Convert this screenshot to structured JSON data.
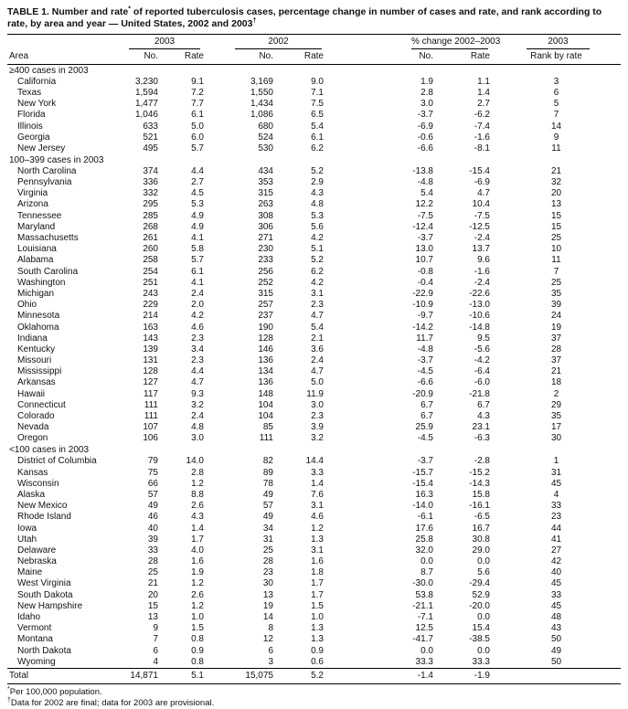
{
  "title": {
    "part1": "TABLE 1. Number and rate",
    "sup1": "*",
    "part2": " of reported tuberculosis cases, percentage change in number of cases and rate, and rank according to rate, by area and year — United States, 2002 and 2003",
    "sup2": "†"
  },
  "header": {
    "area_label": "Area",
    "groups": [
      "2003",
      "2002",
      "% change 2002–2003",
      "2003"
    ],
    "sub_labels": [
      "No.",
      "Rate",
      "No.",
      "Rate",
      "No.",
      "Rate",
      "Rank by rate"
    ]
  },
  "sections": [
    {
      "label": "≥400 cases in 2003",
      "rows": [
        {
          "area": "California",
          "values": [
            "3,230",
            "9.1",
            "3,169",
            "9.0",
            "1.9",
            "1.1",
            "3"
          ]
        },
        {
          "area": "Texas",
          "values": [
            "1,594",
            "7.2",
            "1,550",
            "7.1",
            "2.8",
            "1.4",
            "6"
          ]
        },
        {
          "area": "New York",
          "values": [
            "1,477",
            "7.7",
            "1,434",
            "7.5",
            "3.0",
            "2.7",
            "5"
          ]
        },
        {
          "area": "Florida",
          "values": [
            "1,046",
            "6.1",
            "1,086",
            "6.5",
            "-3.7",
            "-6.2",
            "7"
          ]
        },
        {
          "area": "Illinois",
          "values": [
            "633",
            "5.0",
            "680",
            "5.4",
            "-6.9",
            "-7.4",
            "14"
          ]
        },
        {
          "area": "Georgia",
          "values": [
            "521",
            "6.0",
            "524",
            "6.1",
            "-0.6",
            "-1.6",
            "9"
          ]
        },
        {
          "area": "New Jersey",
          "values": [
            "495",
            "5.7",
            "530",
            "6.2",
            "-6.6",
            "-8.1",
            "11"
          ]
        }
      ]
    },
    {
      "label": "100–399 cases in 2003",
      "rows": [
        {
          "area": "North Carolina",
          "values": [
            "374",
            "4.4",
            "434",
            "5.2",
            "-13.8",
            "-15.4",
            "21"
          ]
        },
        {
          "area": "Pennsylvania",
          "values": [
            "336",
            "2.7",
            "353",
            "2.9",
            "-4.8",
            "-6.9",
            "32"
          ]
        },
        {
          "area": "Virginia",
          "values": [
            "332",
            "4.5",
            "315",
            "4.3",
            "5.4",
            "4.7",
            "20"
          ]
        },
        {
          "area": "Arizona",
          "values": [
            "295",
            "5.3",
            "263",
            "4.8",
            "12.2",
            "10.4",
            "13"
          ]
        },
        {
          "area": "Tennessee",
          "values": [
            "285",
            "4.9",
            "308",
            "5.3",
            "-7.5",
            "-7.5",
            "15"
          ]
        },
        {
          "area": "Maryland",
          "values": [
            "268",
            "4.9",
            "306",
            "5.6",
            "-12.4",
            "-12.5",
            "15"
          ]
        },
        {
          "area": "Massachusetts",
          "values": [
            "261",
            "4.1",
            "271",
            "4.2",
            "-3.7",
            "-2.4",
            "25"
          ]
        },
        {
          "area": "Louisiana",
          "values": [
            "260",
            "5.8",
            "230",
            "5.1",
            "13.0",
            "13.7",
            "10"
          ]
        },
        {
          "area": "Alabama",
          "values": [
            "258",
            "5.7",
            "233",
            "5.2",
            "10.7",
            "9.6",
            "11"
          ]
        },
        {
          "area": "South Carolina",
          "values": [
            "254",
            "6.1",
            "256",
            "6.2",
            "-0.8",
            "-1.6",
            "7"
          ]
        },
        {
          "area": "Washington",
          "values": [
            "251",
            "4.1",
            "252",
            "4.2",
            "-0.4",
            "-2.4",
            "25"
          ]
        },
        {
          "area": "Michigan",
          "values": [
            "243",
            "2.4",
            "315",
            "3.1",
            "-22.9",
            "-22.6",
            "35"
          ]
        },
        {
          "area": "Ohio",
          "values": [
            "229",
            "2.0",
            "257",
            "2.3",
            "-10.9",
            "-13.0",
            "39"
          ]
        },
        {
          "area": "Minnesota",
          "values": [
            "214",
            "4.2",
            "237",
            "4.7",
            "-9.7",
            "-10.6",
            "24"
          ]
        },
        {
          "area": "Oklahoma",
          "values": [
            "163",
            "4.6",
            "190",
            "5.4",
            "-14.2",
            "-14.8",
            "19"
          ]
        },
        {
          "area": "Indiana",
          "values": [
            "143",
            "2.3",
            "128",
            "2.1",
            "11.7",
            "9.5",
            "37"
          ]
        },
        {
          "area": "Kentucky",
          "values": [
            "139",
            "3.4",
            "146",
            "3.6",
            "-4.8",
            "-5.6",
            "28"
          ]
        },
        {
          "area": "Missouri",
          "values": [
            "131",
            "2.3",
            "136",
            "2.4",
            "-3.7",
            "-4.2",
            "37"
          ]
        },
        {
          "area": "Mississippi",
          "values": [
            "128",
            "4.4",
            "134",
            "4.7",
            "-4.5",
            "-6.4",
            "21"
          ]
        },
        {
          "area": "Arkansas",
          "values": [
            "127",
            "4.7",
            "136",
            "5.0",
            "-6.6",
            "-6.0",
            "18"
          ]
        },
        {
          "area": "Hawaii",
          "values": [
            "117",
            "9.3",
            "148",
            "11.9",
            "-20.9",
            "-21.8",
            "2"
          ]
        },
        {
          "area": "Connecticut",
          "values": [
            "111",
            "3.2",
            "104",
            "3.0",
            "6.7",
            "6.7",
            "29"
          ]
        },
        {
          "area": "Colorado",
          "values": [
            "111",
            "2.4",
            "104",
            "2.3",
            "6.7",
            "4.3",
            "35"
          ]
        },
        {
          "area": "Nevada",
          "values": [
            "107",
            "4.8",
            "85",
            "3.9",
            "25.9",
            "23.1",
            "17"
          ]
        },
        {
          "area": "Oregon",
          "values": [
            "106",
            "3.0",
            "111",
            "3.2",
            "-4.5",
            "-6.3",
            "30"
          ]
        }
      ]
    },
    {
      "label": "<100 cases in 2003",
      "rows": [
        {
          "area": "District of Columbia",
          "values": [
            "79",
            "14.0",
            "82",
            "14.4",
            "-3.7",
            "-2.8",
            "1"
          ]
        },
        {
          "area": "Kansas",
          "values": [
            "75",
            "2.8",
            "89",
            "3.3",
            "-15.7",
            "-15.2",
            "31"
          ]
        },
        {
          "area": "Wisconsin",
          "values": [
            "66",
            "1.2",
            "78",
            "1.4",
            "-15.4",
            "-14.3",
            "45"
          ]
        },
        {
          "area": "Alaska",
          "values": [
            "57",
            "8.8",
            "49",
            "7.6",
            "16.3",
            "15.8",
            "4"
          ]
        },
        {
          "area": "New Mexico",
          "values": [
            "49",
            "2.6",
            "57",
            "3.1",
            "-14.0",
            "-16.1",
            "33"
          ]
        },
        {
          "area": "Rhode Island",
          "values": [
            "46",
            "4.3",
            "49",
            "4.6",
            "-6.1",
            "-6.5",
            "23"
          ]
        },
        {
          "area": "Iowa",
          "values": [
            "40",
            "1.4",
            "34",
            "1.2",
            "17.6",
            "16.7",
            "44"
          ]
        },
        {
          "area": "Utah",
          "values": [
            "39",
            "1.7",
            "31",
            "1.3",
            "25.8",
            "30.8",
            "41"
          ]
        },
        {
          "area": "Delaware",
          "values": [
            "33",
            "4.0",
            "25",
            "3.1",
            "32.0",
            "29.0",
            "27"
          ]
        },
        {
          "area": "Nebraska",
          "values": [
            "28",
            "1.6",
            "28",
            "1.6",
            "0.0",
            "0.0",
            "42"
          ]
        },
        {
          "area": "Maine",
          "values": [
            "25",
            "1.9",
            "23",
            "1.8",
            "8.7",
            "5.6",
            "40"
          ]
        },
        {
          "area": "West Virginia",
          "values": [
            "21",
            "1.2",
            "30",
            "1.7",
            "-30.0",
            "-29.4",
            "45"
          ]
        },
        {
          "area": "South Dakota",
          "values": [
            "20",
            "2.6",
            "13",
            "1.7",
            "53.8",
            "52.9",
            "33"
          ]
        },
        {
          "area": "New Hampshire",
          "values": [
            "15",
            "1.2",
            "19",
            "1.5",
            "-21.1",
            "-20.0",
            "45"
          ]
        },
        {
          "area": "Idaho",
          "values": [
            "13",
            "1.0",
            "14",
            "1.0",
            "-7.1",
            "0.0",
            "48"
          ]
        },
        {
          "area": "Vermont",
          "values": [
            "9",
            "1.5",
            "8",
            "1.3",
            "12.5",
            "15.4",
            "43"
          ]
        },
        {
          "area": "Montana",
          "values": [
            "7",
            "0.8",
            "12",
            "1.3",
            "-41.7",
            "-38.5",
            "50"
          ]
        },
        {
          "area": "North Dakota",
          "values": [
            "6",
            "0.9",
            "6",
            "0.9",
            "0.0",
            "0.0",
            "49"
          ]
        },
        {
          "area": "Wyoming",
          "values": [
            "4",
            "0.8",
            "3",
            "0.6",
            "33.3",
            "33.3",
            "50"
          ]
        }
      ]
    }
  ],
  "total": {
    "area": "Total",
    "values": [
      "14,871",
      "5.1",
      "15,075",
      "5.2",
      "-1.4",
      "-1.9",
      ""
    ]
  },
  "footnotes": [
    {
      "marker": "*",
      "text": "Per 100,000 population."
    },
    {
      "marker": "†",
      "text": "Data for 2002 are final; data for 2003 are provisional."
    }
  ]
}
